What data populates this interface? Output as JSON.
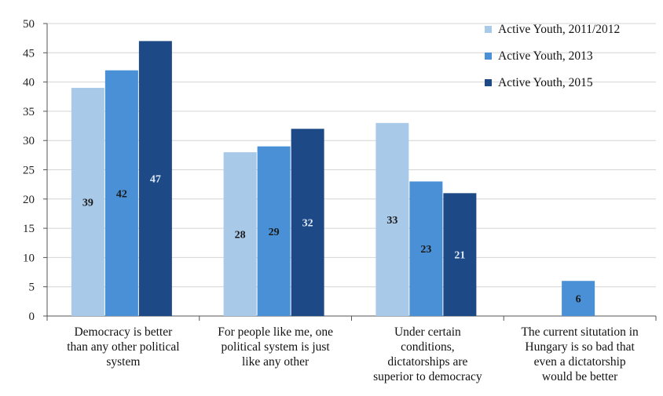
{
  "chart_data": {
    "type": "bar",
    "categories": [
      [
        "Democracy is better",
        "than any other political",
        "system"
      ],
      [
        "For people like me, one",
        "political system is just",
        "like any other"
      ],
      [
        "Under certain",
        "conditions,",
        "dictatorships are",
        "superior  to democracy"
      ],
      [
        "The current situtation in",
        "Hungary is so bad that",
        "even a dictatorship",
        "would be better"
      ]
    ],
    "series": [
      {
        "name": "Active Youth, 2011/2012",
        "values": [
          39,
          28,
          33,
          null
        ],
        "color": "#a9c9e8",
        "label_color": "#1a1a1a"
      },
      {
        "name": "Active Youth, 2013",
        "values": [
          42,
          29,
          23,
          6
        ],
        "color": "#4a90d6",
        "label_color": "#1a1a1a"
      },
      {
        "name": "Active Youth, 2015",
        "values": [
          47,
          32,
          21,
          null
        ],
        "color": "#1d4a86",
        "label_color": "#dfe8f5"
      }
    ],
    "ylim": [
      0,
      50
    ],
    "yticks": [
      "0",
      "5",
      "10",
      "15",
      "20",
      "25",
      "30",
      "35",
      "40",
      "45",
      "50"
    ],
    "legend_position": "top-right",
    "grid": true
  }
}
